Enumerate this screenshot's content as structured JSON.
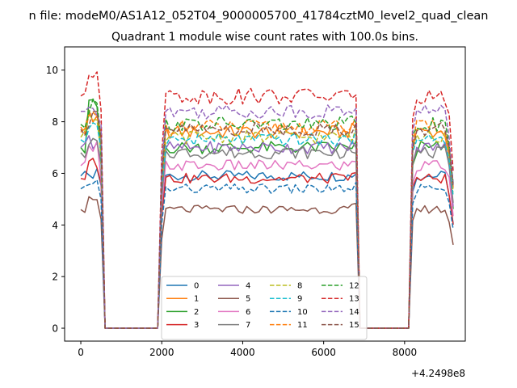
{
  "chart_data": {
    "type": "line",
    "suptitle": "n file: modeM0/AS1A12_052T04_9000005700_41784cztM0_level2_quad_clean",
    "title": "Quadrant 1 module wise count rates with 100.0s bins.",
    "xlabel": "",
    "ylabel": "",
    "x_offset_label": "+4.2498e8",
    "xlim": [
      -400,
      9500
    ],
    "ylim": [
      -0.5,
      10.9
    ],
    "xticks": [
      0,
      2000,
      4000,
      6000,
      8000
    ],
    "xtick_labels": [
      "0",
      "2000",
      "4000",
      "6000",
      "8000"
    ],
    "yticks": [
      0,
      2,
      4,
      6,
      8,
      10
    ],
    "ytick_labels": [
      "0",
      "2",
      "4",
      "6",
      "8",
      "10"
    ],
    "grid": false,
    "legend": {
      "placement": "lower center",
      "columns": 4
    },
    "bin_width": 100,
    "x_start": 0,
    "segments": [
      [
        0,
        600
      ],
      [
        2000,
        6900
      ],
      [
        8150,
        9250
      ]
    ],
    "series_profile": {
      "name": "all modules",
      "points": [
        [
          0,
          1.0
        ],
        [
          300,
          1.0
        ],
        [
          500,
          0.94
        ],
        [
          600,
          0.0
        ],
        [
          1900,
          0.0
        ],
        [
          2000,
          0.75
        ],
        [
          2050,
          1.0
        ],
        [
          6600,
          1.0
        ],
        [
          6800,
          1.02
        ],
        [
          6900,
          0.0
        ],
        [
          8100,
          0.0
        ],
        [
          8150,
          0.85
        ],
        [
          8250,
          1.0
        ],
        [
          9050,
          1.0
        ],
        [
          9250,
          0.58
        ]
      ]
    },
    "series": [
      {
        "name": "0",
        "color": "#1f77b4",
        "dash": "solid",
        "level": 5.9,
        "peak": 6.3
      },
      {
        "name": "1",
        "color": "#ff7f0e",
        "dash": "solid",
        "level": 7.6,
        "peak": 8.6
      },
      {
        "name": "2",
        "color": "#2ca02c",
        "dash": "solid",
        "level": 7.0,
        "peak": 9.3
      },
      {
        "name": "3",
        "color": "#d62728",
        "dash": "solid",
        "level": 5.8,
        "peak": 6.6
      },
      {
        "name": "4",
        "color": "#9467bd",
        "dash": "solid",
        "level": 7.0,
        "peak": 7.5
      },
      {
        "name": "5",
        "color": "#8c564b",
        "dash": "solid",
        "level": 4.6,
        "peak": 5.3
      },
      {
        "name": "6",
        "color": "#e377c2",
        "dash": "solid",
        "level": 6.3,
        "peak": 7.3
      },
      {
        "name": "7",
        "color": "#7f7f7f",
        "dash": "solid",
        "level": 6.8,
        "peak": 7.5
      },
      {
        "name": "8",
        "color": "#bcbd22",
        "dash": "dashed",
        "level": 7.4,
        "peak": 8.4
      },
      {
        "name": "9",
        "color": "#17becf",
        "dash": "dashed",
        "level": 7.3,
        "peak": 8.0
      },
      {
        "name": "10",
        "color": "#1f77b4",
        "dash": "dashed",
        "level": 5.4,
        "peak": 6.0
      },
      {
        "name": "11",
        "color": "#ff7f0e",
        "dash": "dashed",
        "level": 7.8,
        "peak": 8.5
      },
      {
        "name": "12",
        "color": "#2ca02c",
        "dash": "dashed",
        "level": 7.9,
        "peak": 8.9
      },
      {
        "name": "13",
        "color": "#d62728",
        "dash": "dashed",
        "level": 9.0,
        "peak": 10.4
      },
      {
        "name": "14",
        "color": "#9467bd",
        "dash": "dashed",
        "level": 8.4,
        "peak": 8.8
      },
      {
        "name": "15",
        "color": "#8c564b",
        "dash": "dashed",
        "level": 7.7,
        "peak": 8.5
      }
    ]
  }
}
